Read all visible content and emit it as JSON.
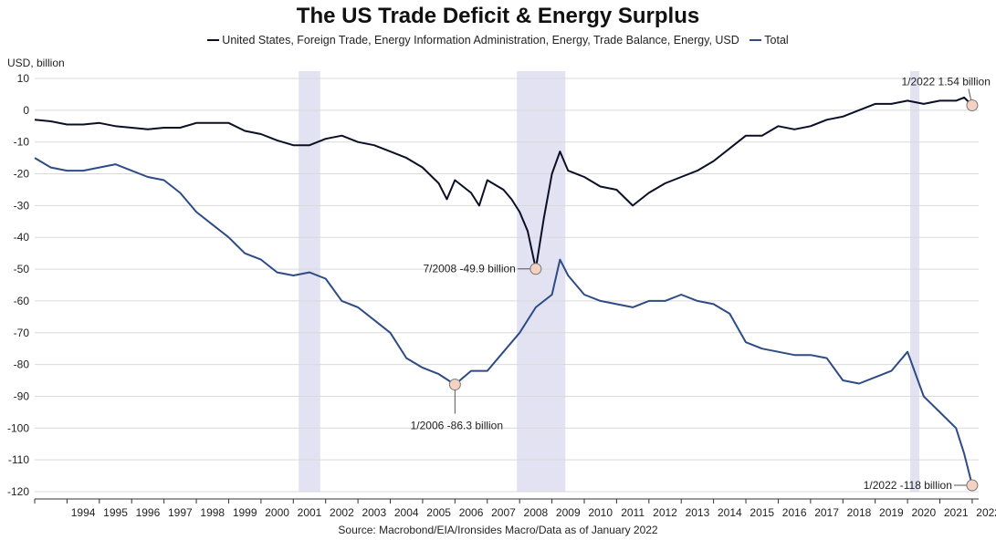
{
  "chart_data": {
    "type": "line",
    "title": "The US Trade Deficit & Energy Surplus",
    "ylabel": "USD, billion",
    "ylim": [
      -120,
      10
    ],
    "yticks": [
      10,
      0,
      -10,
      -20,
      -30,
      -40,
      -50,
      -60,
      -70,
      -80,
      -90,
      -100,
      -110,
      -120
    ],
    "xticks": [
      "1994",
      "1995",
      "1996",
      "1997",
      "1998",
      "1999",
      "2000",
      "2001",
      "2002",
      "2003",
      "2004",
      "2005",
      "2006",
      "2007",
      "2008",
      "2009",
      "2010",
      "2011",
      "2012",
      "2013",
      "2014",
      "2015",
      "2016",
      "2017",
      "2018",
      "2019",
      "2020",
      "2021",
      "2022"
    ],
    "grid": true,
    "legend_position": "top",
    "recessions": [
      {
        "start": "2001-03",
        "end": "2001-11"
      },
      {
        "start": "2007-12",
        "end": "2009-06"
      },
      {
        "start": "2020-02",
        "end": "2020-04"
      }
    ],
    "series": [
      {
        "name": "United States, Foreign Trade, Energy Information Administration, Energy, Trade Balance, Energy, USD",
        "color": "#0b0f26",
        "points": [
          [
            "1993-01",
            -3
          ],
          [
            "1993-07",
            -3.5
          ],
          [
            "1994-01",
            -4.5
          ],
          [
            "1994-07",
            -4.5
          ],
          [
            "1995-01",
            -4
          ],
          [
            "1995-07",
            -5
          ],
          [
            "1996-01",
            -5.5
          ],
          [
            "1996-07",
            -6
          ],
          [
            "1997-01",
            -5.5
          ],
          [
            "1997-07",
            -5.5
          ],
          [
            "1998-01",
            -4
          ],
          [
            "1998-07",
            -4
          ],
          [
            "1999-01",
            -4
          ],
          [
            "1999-07",
            -6.5
          ],
          [
            "2000-01",
            -7.5
          ],
          [
            "2000-07",
            -9.5
          ],
          [
            "2001-01",
            -11
          ],
          [
            "2001-07",
            -11
          ],
          [
            "2002-01",
            -9
          ],
          [
            "2002-07",
            -8
          ],
          [
            "2003-01",
            -10
          ],
          [
            "2003-07",
            -11
          ],
          [
            "2004-01",
            -13
          ],
          [
            "2004-07",
            -15
          ],
          [
            "2005-01",
            -18
          ],
          [
            "2005-07",
            -23
          ],
          [
            "2005-10",
            -28
          ],
          [
            "2006-01",
            -22
          ],
          [
            "2006-07",
            -26
          ],
          [
            "2006-10",
            -30
          ],
          [
            "2007-01",
            -22
          ],
          [
            "2007-07",
            -25
          ],
          [
            "2007-10",
            -28
          ],
          [
            "2008-01",
            -32
          ],
          [
            "2008-04",
            -38
          ],
          [
            "2008-07",
            -49.9
          ],
          [
            "2008-10",
            -34
          ],
          [
            "2009-01",
            -20
          ],
          [
            "2009-04",
            -13
          ],
          [
            "2009-07",
            -19
          ],
          [
            "2010-01",
            -21
          ],
          [
            "2010-07",
            -24
          ],
          [
            "2011-01",
            -25
          ],
          [
            "2011-07",
            -30
          ],
          [
            "2012-01",
            -26
          ],
          [
            "2012-07",
            -23
          ],
          [
            "2013-01",
            -21
          ],
          [
            "2013-07",
            -19
          ],
          [
            "2014-01",
            -16
          ],
          [
            "2014-07",
            -12
          ],
          [
            "2015-01",
            -8
          ],
          [
            "2015-07",
            -8
          ],
          [
            "2016-01",
            -5
          ],
          [
            "2016-07",
            -6
          ],
          [
            "2017-01",
            -5
          ],
          [
            "2017-07",
            -3
          ],
          [
            "2018-01",
            -2
          ],
          [
            "2018-07",
            0
          ],
          [
            "2019-01",
            2
          ],
          [
            "2019-07",
            2
          ],
          [
            "2020-01",
            3
          ],
          [
            "2020-07",
            2
          ],
          [
            "2021-01",
            3
          ],
          [
            "2021-07",
            3
          ],
          [
            "2021-10",
            4
          ],
          [
            "2022-01",
            1.54
          ]
        ]
      },
      {
        "name": "Total",
        "color": "#2d4c85",
        "points": [
          [
            "1993-01",
            -15
          ],
          [
            "1993-07",
            -18
          ],
          [
            "1994-01",
            -19
          ],
          [
            "1994-07",
            -19
          ],
          [
            "1995-01",
            -18
          ],
          [
            "1995-07",
            -17
          ],
          [
            "1996-01",
            -19
          ],
          [
            "1996-07",
            -21
          ],
          [
            "1997-01",
            -22
          ],
          [
            "1997-07",
            -26
          ],
          [
            "1998-01",
            -32
          ],
          [
            "1998-07",
            -36
          ],
          [
            "1999-01",
            -40
          ],
          [
            "1999-07",
            -45
          ],
          [
            "2000-01",
            -47
          ],
          [
            "2000-07",
            -51
          ],
          [
            "2001-01",
            -52
          ],
          [
            "2001-07",
            -51
          ],
          [
            "2002-01",
            -53
          ],
          [
            "2002-07",
            -60
          ],
          [
            "2003-01",
            -62
          ],
          [
            "2003-07",
            -66
          ],
          [
            "2004-01",
            -70
          ],
          [
            "2004-07",
            -78
          ],
          [
            "2005-01",
            -81
          ],
          [
            "2005-07",
            -83
          ],
          [
            "2006-01",
            -86.3
          ],
          [
            "2006-07",
            -82
          ],
          [
            "2007-01",
            -82
          ],
          [
            "2007-07",
            -76
          ],
          [
            "2008-01",
            -70
          ],
          [
            "2008-07",
            -62
          ],
          [
            "2009-01",
            -58
          ],
          [
            "2009-04",
            -47
          ],
          [
            "2009-07",
            -52
          ],
          [
            "2010-01",
            -58
          ],
          [
            "2010-07",
            -60
          ],
          [
            "2011-01",
            -61
          ],
          [
            "2011-07",
            -62
          ],
          [
            "2012-01",
            -60
          ],
          [
            "2012-07",
            -60
          ],
          [
            "2013-01",
            -58
          ],
          [
            "2013-07",
            -60
          ],
          [
            "2014-01",
            -61
          ],
          [
            "2014-07",
            -64
          ],
          [
            "2015-01",
            -73
          ],
          [
            "2015-07",
            -75
          ],
          [
            "2016-01",
            -76
          ],
          [
            "2016-07",
            -77
          ],
          [
            "2017-01",
            -77
          ],
          [
            "2017-07",
            -78
          ],
          [
            "2018-01",
            -85
          ],
          [
            "2018-07",
            -86
          ],
          [
            "2019-01",
            -84
          ],
          [
            "2019-07",
            -82
          ],
          [
            "2020-01",
            -76
          ],
          [
            "2020-07",
            -90
          ],
          [
            "2021-01",
            -95
          ],
          [
            "2021-07",
            -100
          ],
          [
            "2021-10",
            -108
          ],
          [
            "2022-01",
            -118
          ]
        ]
      }
    ],
    "annotations": [
      {
        "text": "1/2022 1.54 billion",
        "date": "2022-01",
        "value": 1.54,
        "side": "upper-left"
      },
      {
        "text": "7/2008 -49.9 billion",
        "date": "2008-07",
        "value": -49.9,
        "side": "left"
      },
      {
        "text": "1/2006 -86.3 billion",
        "date": "2006-01",
        "value": -86.3,
        "side": "below"
      },
      {
        "text": "1/2022 -118 billion",
        "date": "2022-01",
        "value": -118,
        "side": "left"
      }
    ],
    "source": "Source: Macrobond/EIA/Ironsides Macro/Data as of January 2022"
  },
  "colors": {
    "deficit_line": "#0b0f26",
    "total_line": "#2d4c85",
    "recession_band": "#e2e2f3",
    "marker_fill": "#f4d2c2",
    "grid": "#d9d9d9"
  }
}
